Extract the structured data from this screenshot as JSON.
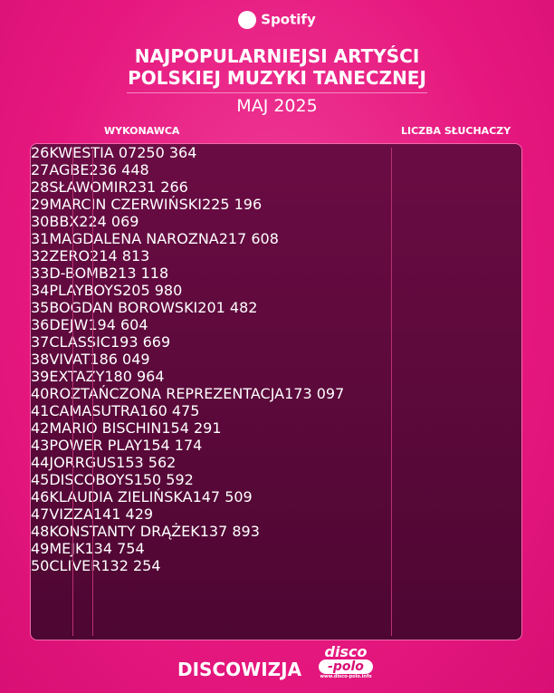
{
  "header": {
    "brand": "Spotify",
    "title_lines": [
      "NAJPOPULARNIEJSI ARTYŚCI",
      "POLSKIEJ MUZYKI TANECZNEJ"
    ],
    "subtitle": "MAJ 2025"
  },
  "table": {
    "columns": [
      "WYKONAWCA",
      "LICZBA SŁUCHACZY"
    ],
    "rows": [
      [
        "26",
        "KWESTIA 07",
        "250 364"
      ],
      [
        "27",
        "AGBE",
        "236 448"
      ],
      [
        "28",
        "SŁAWOMIR",
        "231 266"
      ],
      [
        "29",
        "MARCIN CZERWIŃSKI",
        "225 196"
      ],
      [
        "30",
        "BBX",
        "224 069"
      ],
      [
        "31",
        "MAGDALENA NAROZNA",
        "217 608"
      ],
      [
        "32",
        "ZERO",
        "214 813"
      ],
      [
        "33",
        "D-BOMB",
        "213 118"
      ],
      [
        "34",
        "PLAYBOYS",
        "205 980"
      ],
      [
        "35",
        "BOGDAN BOROWSKI",
        "201 482"
      ],
      [
        "36",
        "DEJW",
        "194 604"
      ],
      [
        "37",
        "CLASSIC",
        "193 669"
      ],
      [
        "38",
        "VIVAT",
        "186 049"
      ],
      [
        "39",
        "EXTAZY",
        "180 964"
      ],
      [
        "40",
        "ROZTAŃCZONA REPREZENTACJA",
        "173 097"
      ],
      [
        "41",
        "CAMASUTRA",
        "160 475"
      ],
      [
        "42",
        "MARIO BISCHIN",
        "154 291"
      ],
      [
        "43",
        "POWER PLAY",
        "154 174"
      ],
      [
        "44",
        "JORRGUS",
        "153 562"
      ],
      [
        "45",
        "DISCOBOYS",
        "150 592"
      ],
      [
        "46",
        "KLAUDIA ZIELIŃSKA",
        "147 509"
      ],
      [
        "47",
        "VIZZA",
        "141 429"
      ],
      [
        "48",
        "KONSTANTY DRĄŻEK",
        "137 893"
      ],
      [
        "49",
        "MEJK",
        "134 754"
      ],
      [
        "50",
        "CLIVER",
        "132 254"
      ]
    ]
  },
  "footer": {
    "brand": "DISCOWIZJA",
    "logo_top": "disco",
    "logo_bottom": "-polo",
    "logo_url": "www.disco-polo.info"
  }
}
